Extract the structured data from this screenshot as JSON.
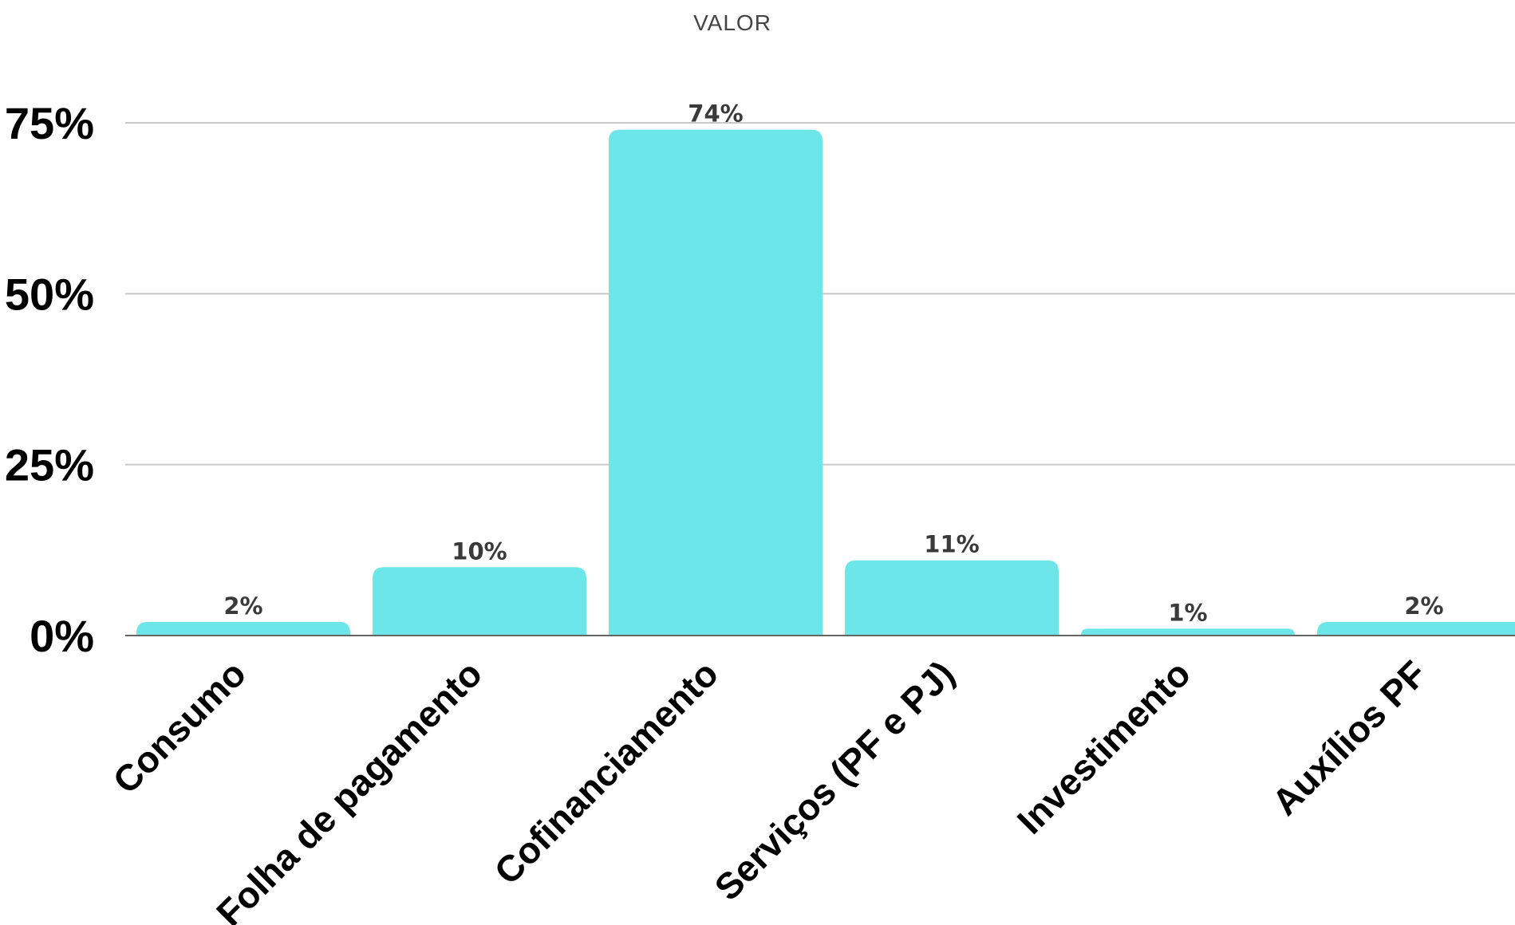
{
  "chart_data": {
    "type": "bar",
    "legend_title": "VALOR",
    "legend_position": "top-center",
    "categories": [
      "Consumo",
      "Folha de pagamento",
      "Cofinanciamento",
      "Serviços (PF e PJ)",
      "Investimento",
      "Auxílios PF"
    ],
    "values": [
      2,
      10,
      74,
      11,
      1,
      2
    ],
    "data_labels": [
      "2%",
      "10%",
      "74%",
      "11%",
      "1%",
      "2%"
    ],
    "ylim": [
      0,
      75
    ],
    "yticks": [
      0,
      25,
      50,
      75
    ],
    "ytick_labels": [
      "0%",
      "25%",
      "50%",
      "75%"
    ],
    "xlabel": "",
    "ylabel": "",
    "grid": true,
    "bar_color": "#6ce6e8",
    "grid_color": "#c8c8c8",
    "axis_color": "#666666"
  }
}
